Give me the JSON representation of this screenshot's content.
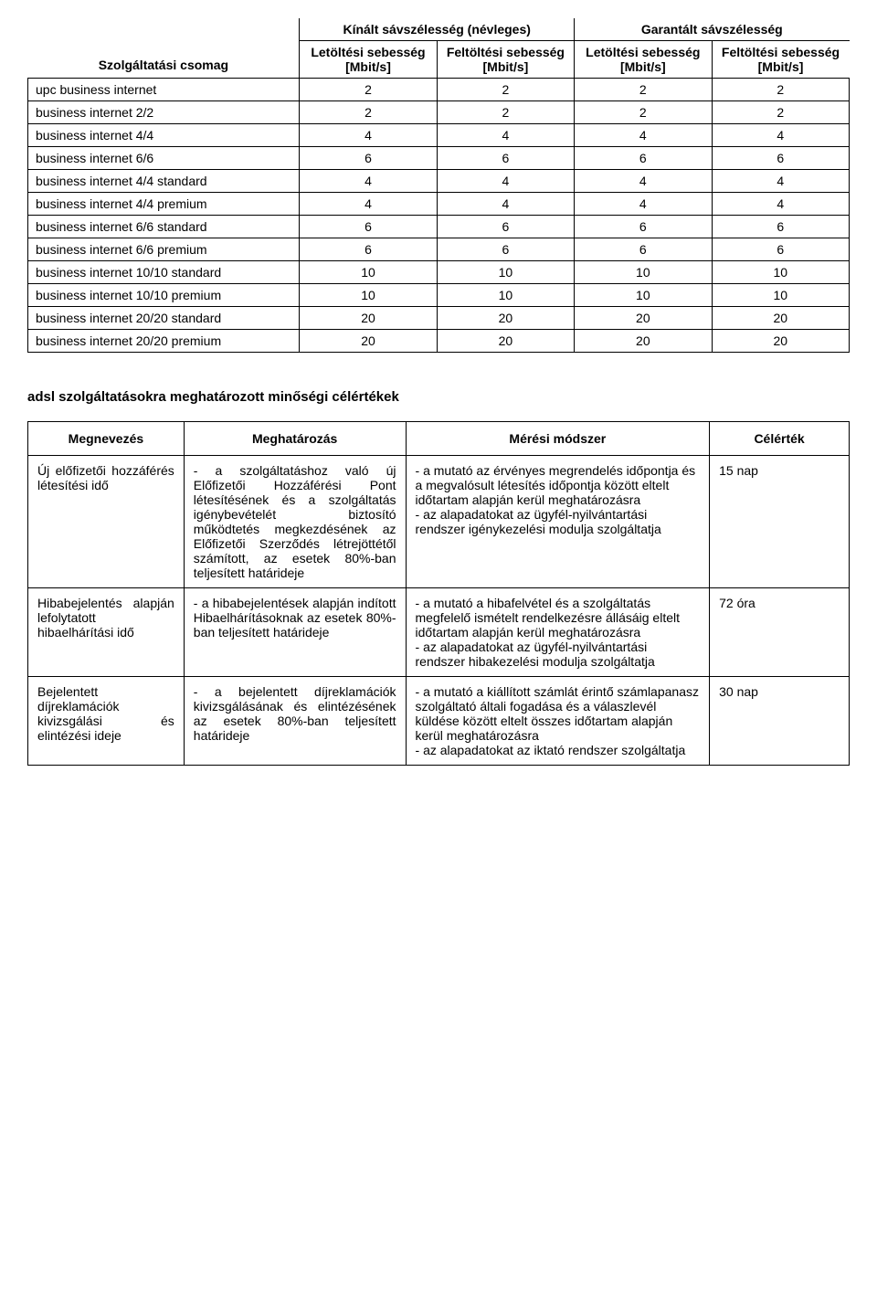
{
  "table1": {
    "header": {
      "package": "Szolgáltatási csomag",
      "offered": "Kínált sávszélesség (névleges)",
      "guaranteed": "Garantált sávszélesség",
      "dl": "Letöltési sebesség [Mbit/s]",
      "ul": "Feltöltési sebesség [Mbit/s]"
    },
    "rows": [
      {
        "name": "upc business internet",
        "v": [
          "2",
          "2",
          "2",
          "2"
        ]
      },
      {
        "name": "business internet 2/2",
        "v": [
          "2",
          "2",
          "2",
          "2"
        ]
      },
      {
        "name": "business internet 4/4",
        "v": [
          "4",
          "4",
          "4",
          "4"
        ]
      },
      {
        "name": "business internet 6/6",
        "v": [
          "6",
          "6",
          "6",
          "6"
        ]
      },
      {
        "name": "business internet 4/4 standard",
        "v": [
          "4",
          "4",
          "4",
          "4"
        ]
      },
      {
        "name": "business internet 4/4 premium",
        "v": [
          "4",
          "4",
          "4",
          "4"
        ]
      },
      {
        "name": "business internet 6/6 standard",
        "v": [
          "6",
          "6",
          "6",
          "6"
        ]
      },
      {
        "name": "business internet 6/6 premium",
        "v": [
          "6",
          "6",
          "6",
          "6"
        ]
      },
      {
        "name": "business internet 10/10 standard",
        "v": [
          "10",
          "10",
          "10",
          "10"
        ]
      },
      {
        "name": "business internet 10/10 premium",
        "v": [
          "10",
          "10",
          "10",
          "10"
        ]
      },
      {
        "name": "business internet 20/20 standard",
        "v": [
          "20",
          "20",
          "20",
          "20"
        ]
      },
      {
        "name": "business internet 20/20 premium",
        "v": [
          "20",
          "20",
          "20",
          "20"
        ]
      }
    ]
  },
  "sectionTitle": "adsl szolgáltatásokra meghatározott minőségi célértékek",
  "table2": {
    "header": {
      "c1": "Megnevezés",
      "c2": "Meghatározás",
      "c3": "Mérési módszer",
      "c4": "Célérték"
    },
    "rows": [
      {
        "c1": "Új előfizetői hozzáférés létesítési idő",
        "c2": "- a szolgáltatáshoz való új Előfizetői Hozzáférési Pont létesítésének és a szolgáltatás igénybevételét biztosító működtetés megkezdésének az Előfizetői Szerződés létrejöttétől számított, az esetek 80%-ban teljesített határideje",
        "c3": "- a mutató az érvényes megrendelés időpontja és a megvalósult létesítés időpontja között eltelt időtartam alapján kerül meghatározásra\n- az alapadatokat az ügyfél-nyilvántartási rendszer igénykezelési modulja szolgáltatja",
        "c4": "15 nap"
      },
      {
        "c1": "Hibabejelentés alapján lefolytatott hibaelhárítási idő",
        "c2": "- a hibabejelentések alapján indított Hibaelhárításoknak az esetek 80%-ban teljesített határideje",
        "c3": "- a mutató a hibafelvétel és a szolgáltatás megfelelő ismételt rendelkezésre állásáig eltelt időtartam alapján kerül meghatározásra\n- az alapadatokat az ügyfél-nyilvántartási rendszer hibakezelési modulja szolgáltatja",
        "c4": "72 óra"
      },
      {
        "c1": "Bejelentett díjreklamációk kivizsgálási és elintézési ideje",
        "c2": "- a bejelentett díjreklamációk kivizsgálásának és elintézésének az esetek 80%-ban teljesített határideje",
        "c3": "- a mutató a kiállított számlát érintő számlapanasz szolgáltató általi fogadása és a válaszlevél küldése között eltelt összes időtartam alapján kerül meghatározásra\n- az alapadatokat az iktató rendszer szolgáltatja",
        "c4": "30 nap"
      }
    ]
  }
}
